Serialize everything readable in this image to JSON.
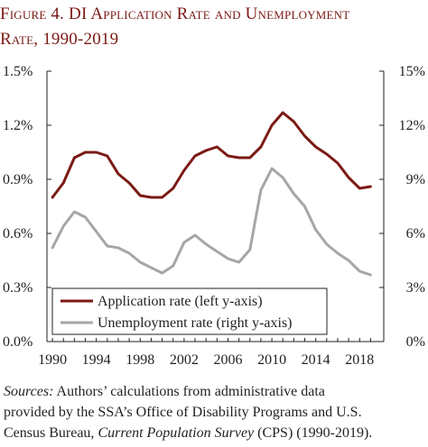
{
  "figure_title_line1": "Figure 4. DI Application Rate and Unemployment",
  "figure_title_line2": "Rate, 1990-2019",
  "sources": {
    "label": "Sources:",
    "line1_rest": " Authors’ calculations from administrative data",
    "line2": "provided by the SSA’s Office of Disability Programs and U.S.",
    "line3_pre": "Census Bureau, ",
    "line3_italic": "Current Population Survey",
    "line3_post": " (CPS) (1990-2019)."
  },
  "colors": {
    "application": "#7b1a14",
    "unemployment": "#a6a6a6",
    "axis": "#231f20",
    "title": "#7a1a14"
  },
  "chart_data": {
    "type": "line",
    "title": "Figure 4. DI Application Rate and Unemployment Rate, 1990-2019",
    "x": [
      1990,
      1991,
      1992,
      1993,
      1994,
      1995,
      1996,
      1997,
      1998,
      1999,
      2000,
      2001,
      2002,
      2003,
      2004,
      2005,
      2006,
      2007,
      2008,
      2009,
      2010,
      2011,
      2012,
      2013,
      2014,
      2015,
      2016,
      2017,
      2018,
      2019
    ],
    "x_ticks": [
      "1990",
      "1994",
      "1998",
      "2002",
      "2006",
      "2010",
      "2014",
      "2018"
    ],
    "xlim": [
      1989.5,
      2020.2
    ],
    "left_axis": {
      "ticks": [
        "0.0%",
        "0.3%",
        "0.6%",
        "0.9%",
        "1.2%",
        "1.5%"
      ],
      "ylim": [
        0,
        1.5
      ]
    },
    "right_axis": {
      "ticks": [
        "0%",
        "3%",
        "6%",
        "9%",
        "12%",
        "15%"
      ],
      "ylim": [
        0,
        15
      ]
    },
    "grid": false,
    "legend_position": "bottom-left",
    "series": [
      {
        "name": "Application rate (left y-axis)",
        "axis": "left",
        "values": [
          0.8,
          0.88,
          1.02,
          1.05,
          1.05,
          1.03,
          0.93,
          0.88,
          0.81,
          0.8,
          0.8,
          0.85,
          0.95,
          1.03,
          1.06,
          1.08,
          1.03,
          1.02,
          1.02,
          1.08,
          1.2,
          1.27,
          1.22,
          1.14,
          1.08,
          1.04,
          0.99,
          0.91,
          0.85,
          0.86
        ]
      },
      {
        "name": "Unemployment rate (right y-axis)",
        "axis": "right",
        "values": [
          5.2,
          6.4,
          7.2,
          6.9,
          6.1,
          5.3,
          5.2,
          4.9,
          4.4,
          4.1,
          3.8,
          4.2,
          5.5,
          5.9,
          5.4,
          5.0,
          4.6,
          4.4,
          5.1,
          8.4,
          9.6,
          9.1,
          8.2,
          7.5,
          6.2,
          5.4,
          4.9,
          4.5,
          3.9,
          3.7
        ]
      }
    ]
  }
}
